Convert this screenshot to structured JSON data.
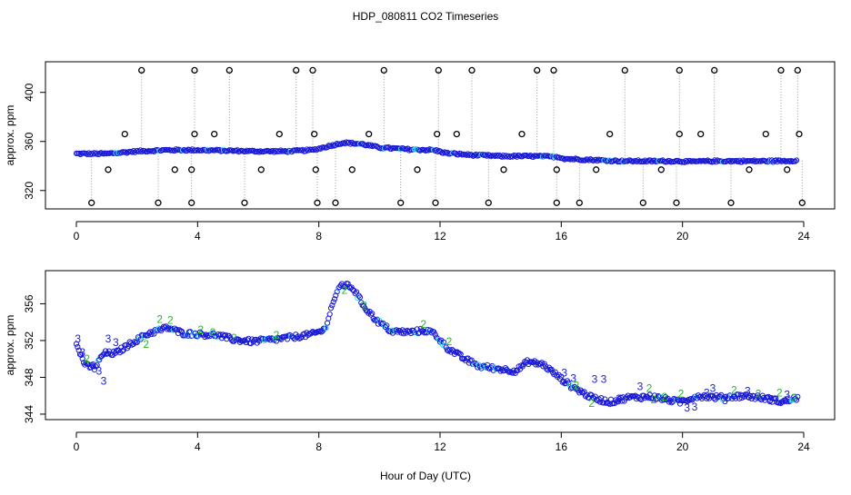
{
  "chart_data": {
    "type": "scatter",
    "title": "HDP_080811  CO2 Timeseries",
    "xlabel": "Hour of Day (UTC)",
    "colors": {
      "main": "#1a1ad6",
      "cyan": "#33d6e6",
      "green": "#22bb22",
      "outlier": "#000000",
      "line": "#9a9a9a"
    },
    "panels": [
      {
        "id": "top",
        "ylabel": "approx. ppm",
        "xlim": [
          0,
          24
        ],
        "ylim": [
          308,
          422
        ],
        "xticks": [
          "0",
          "4",
          "8",
          "12",
          "16",
          "20",
          "24"
        ],
        "yticks": [
          "320",
          "360",
          "400"
        ],
        "baseline_profile": [
          [
            0,
            350
          ],
          [
            1,
            350
          ],
          [
            2,
            352
          ],
          [
            3,
            353
          ],
          [
            4,
            353
          ],
          [
            5,
            352.5
          ],
          [
            6,
            352
          ],
          [
            7,
            352
          ],
          [
            7.8,
            353
          ],
          [
            8.3,
            356
          ],
          [
            8.8,
            359
          ],
          [
            9.4,
            358
          ],
          [
            10,
            355
          ],
          [
            11,
            353.5
          ],
          [
            11.8,
            353
          ],
          [
            12.2,
            350.5
          ],
          [
            13,
            349
          ],
          [
            14,
            348
          ],
          [
            15,
            348
          ],
          [
            15.9,
            347.5
          ],
          [
            16.1,
            346
          ],
          [
            17,
            345
          ],
          [
            18,
            344
          ],
          [
            19.9,
            344
          ],
          [
            20.2,
            343.5
          ],
          [
            21,
            344
          ],
          [
            22,
            344
          ],
          [
            23,
            344
          ],
          [
            23.8,
            344.5
          ]
        ],
        "outliers_high": [
          2.15,
          3.9,
          5.05,
          7.25,
          7.8,
          10.15,
          11.95,
          13.05,
          15.2,
          15.75,
          18.1,
          19.9,
          21.05,
          23.25,
          23.8
        ],
        "outliers_low": [
          0.5,
          2.7,
          3.8,
          5.55,
          7.95,
          8.55,
          10.7,
          11.85,
          13.6,
          15.85,
          16.6,
          18.7,
          19.8,
          21.6,
          23.95
        ],
        "outliers_mid": [
          [
            1.6,
            366
          ],
          [
            1.05,
            337
          ],
          [
            3.25,
            337
          ],
          [
            3.8,
            337
          ],
          [
            4.55,
            366
          ],
          [
            3.9,
            366
          ],
          [
            6.1,
            337
          ],
          [
            6.7,
            366
          ],
          [
            7.85,
            366
          ],
          [
            7.9,
            337
          ],
          [
            9.1,
            337
          ],
          [
            9.65,
            366
          ],
          [
            11.25,
            337
          ],
          [
            11.9,
            366
          ],
          [
            12.55,
            366
          ],
          [
            14.1,
            337
          ],
          [
            14.7,
            366
          ],
          [
            15.85,
            337
          ],
          [
            17.15,
            337
          ],
          [
            17.6,
            366
          ],
          [
            19.3,
            337
          ],
          [
            19.9,
            366
          ],
          [
            20.6,
            366
          ],
          [
            22.2,
            337
          ],
          [
            22.75,
            366
          ],
          [
            23.45,
            337
          ],
          [
            23.85,
            366
          ]
        ]
      },
      {
        "id": "bottom",
        "ylabel": "approx. ppm",
        "xlim": [
          0,
          24
        ],
        "ylim": [
          343.6,
          359.4
        ],
        "xticks": [
          "0",
          "4",
          "8",
          "12",
          "16",
          "20",
          "24"
        ],
        "yticks": [
          "344",
          "348",
          "352",
          "356"
        ],
        "profile": [
          [
            0,
            351.5
          ],
          [
            0.3,
            349.3
          ],
          [
            0.6,
            349
          ],
          [
            0.9,
            350.6
          ],
          [
            1.3,
            350.6
          ],
          [
            1.8,
            351.7
          ],
          [
            2.4,
            352.8
          ],
          [
            3,
            353.4
          ],
          [
            3.5,
            352.8
          ],
          [
            4,
            352.7
          ],
          [
            4.6,
            352.6
          ],
          [
            5.2,
            352.1
          ],
          [
            5.8,
            351.9
          ],
          [
            6.5,
            352.1
          ],
          [
            7.2,
            352.4
          ],
          [
            7.8,
            352.7
          ],
          [
            8.2,
            353.2
          ],
          [
            8.5,
            356.5
          ],
          [
            8.75,
            358.1
          ],
          [
            9.1,
            357.8
          ],
          [
            9.5,
            355.7
          ],
          [
            9.9,
            354.2
          ],
          [
            10.4,
            353
          ],
          [
            11,
            352.9
          ],
          [
            11.5,
            353.1
          ],
          [
            11.8,
            352.8
          ],
          [
            12.2,
            351.3
          ],
          [
            12.8,
            350
          ],
          [
            13.3,
            349.2
          ],
          [
            14,
            348.9
          ],
          [
            14.5,
            348.7
          ],
          [
            14.9,
            349.7
          ],
          [
            15.4,
            349.4
          ],
          [
            15.9,
            348.1
          ],
          [
            16.3,
            347.1
          ],
          [
            17,
            345.8
          ],
          [
            17.6,
            345.3
          ],
          [
            18.2,
            345.8
          ],
          [
            19,
            345.9
          ],
          [
            19.9,
            345.3
          ],
          [
            20.5,
            346
          ],
          [
            21.2,
            345.8
          ],
          [
            22,
            346
          ],
          [
            22.8,
            345.7
          ],
          [
            23.3,
            345.3
          ],
          [
            23.8,
            345.8
          ]
        ],
        "label_marks": [
          {
            "t": "3",
            "h": 0.05,
            "v": 351.8,
            "c": "main"
          },
          {
            "t": "3",
            "h": 0.2,
            "v": 350.3,
            "c": "main"
          },
          {
            "t": "2",
            "h": 0.35,
            "v": 349.6,
            "c": "green"
          },
          {
            "t": "3",
            "h": 0.55,
            "v": 348.9,
            "c": "main"
          },
          {
            "t": "3",
            "h": 0.75,
            "v": 348.3,
            "c": "main"
          },
          {
            "t": "3",
            "h": 0.9,
            "v": 347.2,
            "c": "main"
          },
          {
            "t": "3",
            "h": 1.05,
            "v": 351.8,
            "c": "main"
          },
          {
            "t": "3",
            "h": 1.3,
            "v": 351.4,
            "c": "main"
          },
          {
            "t": "2",
            "h": 2.3,
            "v": 351.2,
            "c": "green"
          },
          {
            "t": "2",
            "h": 2.75,
            "v": 353.9,
            "c": "green"
          },
          {
            "t": "2",
            "h": 3.1,
            "v": 353.8,
            "c": "green"
          },
          {
            "t": "2",
            "h": 4.1,
            "v": 352.8,
            "c": "green"
          },
          {
            "t": "2",
            "h": 4.5,
            "v": 352.5,
            "c": "green"
          },
          {
            "t": "2",
            "h": 5.2,
            "v": 351.9,
            "c": "green"
          },
          {
            "t": "2",
            "h": 6.6,
            "v": 352.2,
            "c": "green"
          },
          {
            "t": "2",
            "h": 8.85,
            "v": 357.1,
            "c": "green"
          },
          {
            "t": "2",
            "h": 9.5,
            "v": 355.4,
            "c": "green"
          },
          {
            "t": "2",
            "h": 11.45,
            "v": 353.4,
            "c": "green"
          },
          {
            "t": "2",
            "h": 12.3,
            "v": 351.5,
            "c": "green"
          },
          {
            "t": "3",
            "h": 16.1,
            "v": 348.1,
            "c": "main"
          },
          {
            "t": "3",
            "h": 16.4,
            "v": 347.5,
            "c": "main"
          },
          {
            "t": "2",
            "h": 16.5,
            "v": 346.7,
            "c": "green"
          },
          {
            "t": "3",
            "h": 17.1,
            "v": 347.4,
            "c": "main"
          },
          {
            "t": "3",
            "h": 17.4,
            "v": 347.4,
            "c": "main"
          },
          {
            "t": "2",
            "h": 17.0,
            "v": 344.8,
            "c": "green"
          },
          {
            "t": "3",
            "h": 17.9,
            "v": 345.3,
            "c": "main"
          },
          {
            "t": "3",
            "h": 18.6,
            "v": 346.6,
            "c": "main"
          },
          {
            "t": "2",
            "h": 18.9,
            "v": 346.4,
            "c": "green"
          },
          {
            "t": "2",
            "h": 19.4,
            "v": 345.5,
            "c": "green"
          },
          {
            "t": "2",
            "h": 19.05,
            "v": 345.2,
            "c": "green"
          },
          {
            "t": "2",
            "h": 19.95,
            "v": 345.8,
            "c": "green"
          },
          {
            "t": "3",
            "h": 20.15,
            "v": 344.3,
            "c": "main"
          },
          {
            "t": "3",
            "h": 20.4,
            "v": 344.4,
            "c": "main"
          },
          {
            "t": "3",
            "h": 20.8,
            "v": 345.9,
            "c": "main"
          },
          {
            "t": "3",
            "h": 21.0,
            "v": 346.4,
            "c": "main"
          },
          {
            "t": "3",
            "h": 21.4,
            "v": 345.1,
            "c": "main"
          },
          {
            "t": "2",
            "h": 21.7,
            "v": 346.2,
            "c": "green"
          },
          {
            "t": "3",
            "h": 22.15,
            "v": 346.1,
            "c": "main"
          },
          {
            "t": "2",
            "h": 22.5,
            "v": 345.8,
            "c": "green"
          },
          {
            "t": "3",
            "h": 22.9,
            "v": 345.2,
            "c": "main"
          },
          {
            "t": "2",
            "h": 23.2,
            "v": 345.9,
            "c": "green"
          },
          {
            "t": "3",
            "h": 23.45,
            "v": 345.7,
            "c": "main"
          },
          {
            "t": "2",
            "h": 23.7,
            "v": 345.4,
            "c": "green"
          }
        ]
      }
    ]
  }
}
